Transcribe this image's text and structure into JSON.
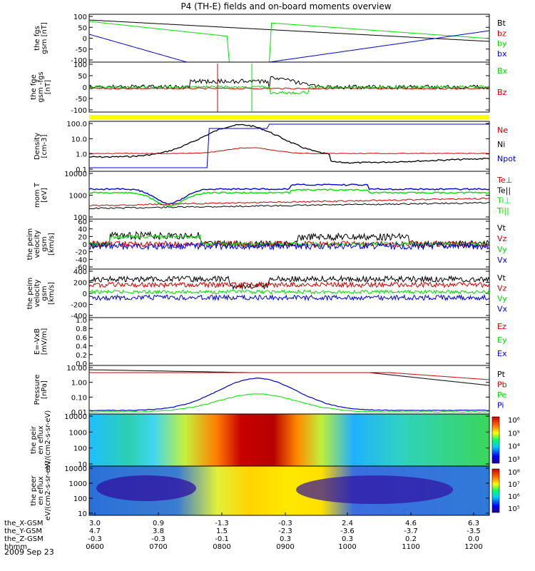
{
  "title": "P4 (TH-E) fields and on-board moments overview",
  "date": "2009 Sep 23",
  "colors": {
    "black": "#000000",
    "red": "#cc0000",
    "green": "#00dd00",
    "blue": "#0000cc",
    "yellow": "#ffff00"
  },
  "time_axis": {
    "labels": [
      {
        "name": "the_X-GSM",
        "values": [
          "3.0",
          "0.9",
          "-1.3",
          "-0.3",
          "2.4",
          "4.6",
          "6.3"
        ]
      },
      {
        "name": "the_Y-GSM",
        "values": [
          "4.7",
          "3.8",
          "1.5",
          "-2.3",
          "-3.6",
          "-3.7",
          "-3.5"
        ]
      },
      {
        "name": "the_Z-GSM",
        "values": [
          "-0.3",
          "-0.3",
          "-0.1",
          "0.3",
          "0.3",
          "0.2",
          "0.0"
        ]
      },
      {
        "name": "hhmm",
        "values": [
          "0600",
          "0700",
          "0800",
          "0900",
          "1000",
          "1100",
          "1200"
        ]
      }
    ]
  },
  "chart_data": [
    {
      "type": "line",
      "ylabel": "the fgs gsm [nT]",
      "y_ticks": [
        "100",
        "50",
        "0",
        "-50",
        "-100"
      ],
      "ylim": [
        -100,
        100
      ],
      "series": [
        {
          "name": "Bt",
          "color": "black"
        },
        {
          "name": "bz",
          "color": "red"
        },
        {
          "name": "by",
          "color": "green"
        },
        {
          "name": "bx",
          "color": "blue"
        }
      ]
    },
    {
      "type": "line",
      "ylabel": "the fge gsm -fgs [nT]",
      "y_ticks": [
        "100",
        "50",
        "0",
        "-50",
        "-100"
      ],
      "ylim": [
        -120,
        120
      ],
      "series": [
        {
          "name": "Bx",
          "color": "green"
        },
        {
          "name": "Bz",
          "color": "red"
        }
      ]
    },
    {
      "type": "line",
      "ylabel": "Density [cm-3]",
      "y_ticks": [
        "100.0",
        "10.0",
        "1.0",
        "0.1"
      ],
      "log": true,
      "series": [
        {
          "name": "Ne",
          "color": "red"
        },
        {
          "name": "Ni",
          "color": "black"
        },
        {
          "name": "Npot",
          "color": "blue"
        }
      ]
    },
    {
      "type": "line",
      "ylabel": "mom T [eV]",
      "y_ticks": [
        "10000",
        "1000",
        "100"
      ],
      "log": true,
      "series": [
        {
          "name": "Te⊥",
          "color": "red"
        },
        {
          "name": "Te||",
          "color": "black"
        },
        {
          "name": "Ti⊥",
          "color": "green"
        },
        {
          "name": "Ti||",
          "color": "green"
        }
      ]
    },
    {
      "type": "line",
      "ylabel": "the peim velocity gsm [km/s]",
      "y_ticks": [
        "60",
        "40",
        "20",
        "0",
        "-20",
        "-40",
        "-60"
      ],
      "ylim": [
        -60,
        60
      ],
      "series": [
        {
          "name": "Vt",
          "color": "black"
        },
        {
          "name": "Vz",
          "color": "red"
        },
        {
          "name": "Vy",
          "color": "green"
        },
        {
          "name": "Vx",
          "color": "blue"
        }
      ]
    },
    {
      "type": "line",
      "ylabel": "the peim velocity gsm [km/s]",
      "y_ticks": [
        "400",
        "200",
        "0",
        "-200",
        "-400"
      ],
      "ylim": [
        -400,
        400
      ],
      "series": [
        {
          "name": "Vt",
          "color": "black"
        },
        {
          "name": "Vz",
          "color": "red"
        },
        {
          "name": "Vy",
          "color": "green"
        },
        {
          "name": "Vx",
          "color": "blue"
        }
      ]
    },
    {
      "type": "line",
      "ylabel": "E=-VxB [mV/m]",
      "y_ticks": [
        "1.0",
        "0.8",
        "0.6",
        "0.4",
        "0.2",
        "0.0"
      ],
      "ylim": [
        0,
        1
      ],
      "series": [
        {
          "name": "Ez",
          "color": "red"
        },
        {
          "name": "Ey",
          "color": "green"
        },
        {
          "name": "Ex",
          "color": "blue"
        }
      ]
    },
    {
      "type": "line",
      "ylabel": "Pressure [nPa]",
      "y_ticks": [
        "10.00",
        "1.00",
        "0.10",
        "0.01"
      ],
      "log": true,
      "series": [
        {
          "name": "Pt",
          "color": "black"
        },
        {
          "name": "Pb",
          "color": "red"
        },
        {
          "name": "Pe",
          "color": "green"
        },
        {
          "name": "Pi",
          "color": "blue"
        }
      ]
    },
    {
      "type": "heatmap",
      "ylabel": "the peir en eflux eV/(cm2-s-sr-eV)",
      "y_ticks": [
        "10000",
        "1000",
        "100",
        "10"
      ],
      "colorbar": [
        "10⁶",
        "10⁵",
        "10⁴",
        "10³"
      ]
    },
    {
      "type": "heatmap",
      "ylabel": "the peer en eflux eV/(cm2-s-sr-eV)",
      "y_ticks": [
        "10000",
        "1000",
        "100",
        "10"
      ],
      "colorbar": [
        "10⁸",
        "10⁷",
        "10⁶",
        "10⁵"
      ]
    }
  ]
}
